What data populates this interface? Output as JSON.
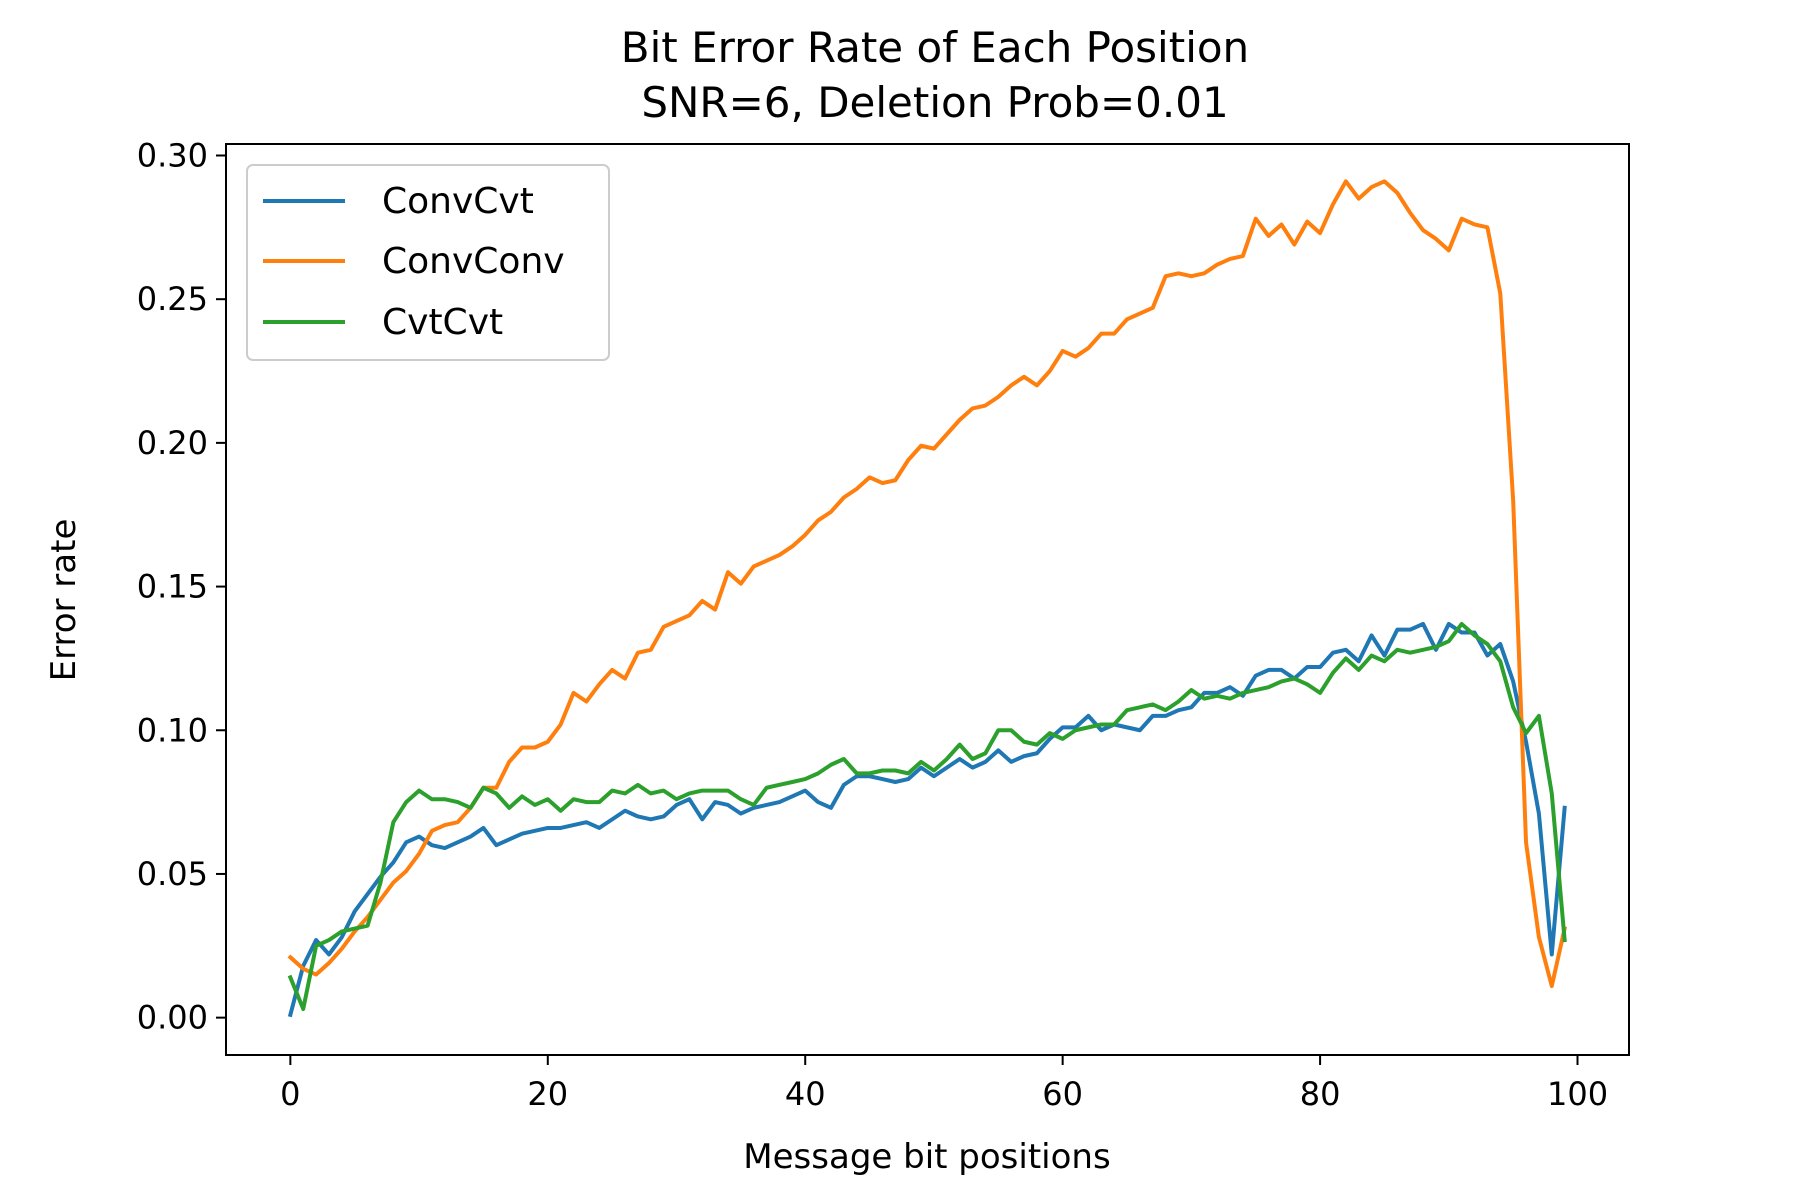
{
  "chart_data": {
    "type": "line",
    "title": "Bit Error Rate of Each Position",
    "subtitle": "SNR=6, Deletion Prob=0.01",
    "xlabel": "Message bit positions",
    "ylabel": "Error rate",
    "xlim": [
      -5,
      104
    ],
    "ylim": [
      -0.013,
      0.304
    ],
    "xticks": [
      0,
      20,
      40,
      60,
      80,
      100
    ],
    "yticks": [
      0.0,
      0.05,
      0.1,
      0.15,
      0.2,
      0.25,
      0.3
    ],
    "xtick_labels": [
      "0",
      "20",
      "40",
      "60",
      "80",
      "100"
    ],
    "ytick_labels": [
      "0.00",
      "0.05",
      "0.10",
      "0.15",
      "0.20",
      "0.25",
      "0.30"
    ],
    "grid": false,
    "legend_position": "top-left",
    "series": [
      {
        "name": "ConvCvt",
        "color": "#1f77b4",
        "values": [
          0.001,
          0.018,
          0.027,
          0.022,
          0.028,
          0.037,
          0.043,
          0.049,
          0.054,
          0.061,
          0.063,
          0.06,
          0.059,
          0.061,
          0.063,
          0.066,
          0.06,
          0.062,
          0.064,
          0.065,
          0.066,
          0.066,
          0.067,
          0.068,
          0.066,
          0.069,
          0.072,
          0.07,
          0.069,
          0.07,
          0.074,
          0.076,
          0.069,
          0.075,
          0.074,
          0.071,
          0.073,
          0.074,
          0.075,
          0.077,
          0.079,
          0.075,
          0.073,
          0.081,
          0.084,
          0.084,
          0.083,
          0.082,
          0.083,
          0.087,
          0.084,
          0.087,
          0.09,
          0.087,
          0.089,
          0.093,
          0.089,
          0.091,
          0.092,
          0.097,
          0.101,
          0.101,
          0.105,
          0.1,
          0.102,
          0.101,
          0.1,
          0.105,
          0.105,
          0.107,
          0.108,
          0.113,
          0.113,
          0.115,
          0.112,
          0.119,
          0.121,
          0.121,
          0.118,
          0.122,
          0.122,
          0.127,
          0.128,
          0.124,
          0.133,
          0.126,
          0.135,
          0.135,
          0.137,
          0.128,
          0.137,
          0.134,
          0.134,
          0.126,
          0.13,
          0.117,
          0.096,
          0.071,
          0.022,
          0.073
        ]
      },
      {
        "name": "ConvConv",
        "color": "#ff7f0e",
        "values": [
          0.021,
          0.017,
          0.015,
          0.019,
          0.024,
          0.03,
          0.035,
          0.041,
          0.047,
          0.051,
          0.057,
          0.065,
          0.067,
          0.068,
          0.073,
          0.08,
          0.08,
          0.089,
          0.094,
          0.094,
          0.096,
          0.102,
          0.113,
          0.11,
          0.116,
          0.121,
          0.118,
          0.127,
          0.128,
          0.136,
          0.138,
          0.14,
          0.145,
          0.142,
          0.155,
          0.151,
          0.157,
          0.159,
          0.161,
          0.164,
          0.168,
          0.173,
          0.176,
          0.181,
          0.184,
          0.188,
          0.186,
          0.187,
          0.194,
          0.199,
          0.198,
          0.203,
          0.208,
          0.212,
          0.213,
          0.216,
          0.22,
          0.223,
          0.22,
          0.225,
          0.232,
          0.23,
          0.233,
          0.238,
          0.238,
          0.243,
          0.245,
          0.247,
          0.258,
          0.259,
          0.258,
          0.259,
          0.262,
          0.264,
          0.265,
          0.278,
          0.272,
          0.276,
          0.269,
          0.277,
          0.273,
          0.283,
          0.291,
          0.285,
          0.289,
          0.291,
          0.287,
          0.28,
          0.274,
          0.271,
          0.267,
          0.278,
          0.276,
          0.275,
          0.252,
          0.18,
          0.061,
          0.028,
          0.011,
          0.031
        ]
      },
      {
        "name": "CvtCvt",
        "color": "#2ca02c",
        "values": [
          0.014,
          0.003,
          0.025,
          0.027,
          0.03,
          0.031,
          0.032,
          0.047,
          0.068,
          0.075,
          0.079,
          0.076,
          0.076,
          0.075,
          0.073,
          0.08,
          0.078,
          0.073,
          0.077,
          0.074,
          0.076,
          0.072,
          0.076,
          0.075,
          0.075,
          0.079,
          0.078,
          0.081,
          0.078,
          0.079,
          0.076,
          0.078,
          0.079,
          0.079,
          0.079,
          0.076,
          0.074,
          0.08,
          0.081,
          0.082,
          0.083,
          0.085,
          0.088,
          0.09,
          0.085,
          0.085,
          0.086,
          0.086,
          0.085,
          0.089,
          0.086,
          0.09,
          0.095,
          0.09,
          0.092,
          0.1,
          0.1,
          0.096,
          0.095,
          0.099,
          0.097,
          0.1,
          0.101,
          0.102,
          0.102,
          0.107,
          0.108,
          0.109,
          0.107,
          0.11,
          0.114,
          0.111,
          0.112,
          0.111,
          0.113,
          0.114,
          0.115,
          0.117,
          0.118,
          0.116,
          0.113,
          0.12,
          0.125,
          0.121,
          0.126,
          0.124,
          0.128,
          0.127,
          0.128,
          0.129,
          0.131,
          0.137,
          0.133,
          0.13,
          0.124,
          0.108,
          0.099,
          0.105,
          0.078,
          0.027
        ]
      }
    ]
  }
}
